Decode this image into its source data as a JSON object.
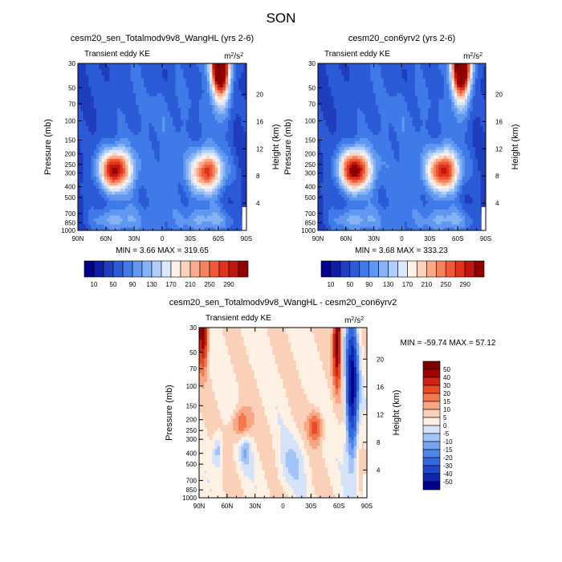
{
  "title": "SON",
  "colors": {
    "seq": [
      "#00008b",
      "#0d1ea5",
      "#1f3ebe",
      "#2b5bd6",
      "#3f7ae8",
      "#6097f0",
      "#86b3f5",
      "#afcdf8",
      "#dbe7fb",
      "#fff1e5",
      "#fdd2bd",
      "#fbab8b",
      "#f6815d",
      "#ef5834",
      "#e0321c",
      "#c11610",
      "#8f0000"
    ],
    "diff": [
      "#00008b",
      "#0f25ad",
      "#2046c9",
      "#3466dd",
      "#4f85e8",
      "#77a4f0",
      "#a4c3f6",
      "#d4e2fa",
      "#fff0e4",
      "#fbd0b8",
      "#f8a784",
      "#f3784f",
      "#e84b25",
      "#cc2411",
      "#9f0000",
      "#7a0000"
    ]
  },
  "chart_data": [
    {
      "type": "heatmap",
      "title": "cesm20_sen_Totalmodv9v8_WangHL (yrs 2-6)",
      "subtitle_left": "Transient eddy KE",
      "units": "m2/s2",
      "units_text": "m",
      "units_sup": "2",
      "units_den": "/s",
      "units_sup2": "2",
      "ylabel": "Pressure (mb)",
      "ylabel_right": "Height (km)",
      "x_ticks": [
        "90N",
        "60N",
        "30N",
        "0",
        "30S",
        "60S",
        "90S"
      ],
      "y_ticks": [
        "30",
        "50",
        "70",
        "100",
        "150",
        "200",
        "250",
        "300",
        "400",
        "500",
        "700",
        "850",
        "1000"
      ],
      "y_right_ticks": [
        "4",
        "8",
        "12",
        "16",
        "20"
      ],
      "min_max_text": "MIN =  3.66  MAX = 319.65",
      "colorbar_labels": [
        "10",
        "50",
        "90",
        "130",
        "170",
        "210",
        "250",
        "290"
      ],
      "blobs": [
        {
          "lat": 50,
          "p": 280,
          "amp": 300
        },
        {
          "lat": -48,
          "p": 290,
          "amp": 260
        },
        {
          "lat": -62,
          "p": 30,
          "amp": 315
        }
      ]
    },
    {
      "type": "heatmap",
      "title": "cesm20_con6yrv2 (yrs 2-6)",
      "subtitle_left": "Transient eddy KE",
      "units": "m2/s2",
      "units_text": "m",
      "units_sup": "2",
      "units_den": "/s",
      "units_sup2": "2",
      "ylabel": "Pressure (mb)",
      "ylabel_right": "Height (km)",
      "x_ticks": [
        "90N",
        "60N",
        "30N",
        "0",
        "30S",
        "60S",
        "90S"
      ],
      "y_ticks": [
        "30",
        "50",
        "70",
        "100",
        "150",
        "200",
        "250",
        "300",
        "400",
        "500",
        "700",
        "850",
        "1000"
      ],
      "y_right_ticks": [
        "4",
        "8",
        "12",
        "16",
        "20"
      ],
      "min_max_text": "MIN =  3.68  MAX = 333.23",
      "colorbar_labels": [
        "10",
        "50",
        "90",
        "130",
        "170",
        "210",
        "250",
        "290"
      ],
      "blobs": [
        {
          "lat": 50,
          "p": 280,
          "amp": 310
        },
        {
          "lat": -45,
          "p": 285,
          "amp": 280
        },
        {
          "lat": -65,
          "p": 30,
          "amp": 330
        }
      ]
    },
    {
      "type": "heatmap",
      "title": "cesm20_sen_Totalmodv9v8_WangHL - cesm20_con6yrv2",
      "subtitle_left": "Transient eddy KE",
      "units": "m2/s2",
      "units_text": "m",
      "units_sup": "2",
      "units_den": "/s",
      "units_sup2": "2",
      "ylabel": "Pressure (mb)",
      "ylabel_right": "Height (km)",
      "x_ticks": [
        "90N",
        "60N",
        "30N",
        "0",
        "30S",
        "60S",
        "90S"
      ],
      "y_ticks": [
        "30",
        "50",
        "70",
        "100",
        "150",
        "200",
        "250",
        "300",
        "400",
        "500",
        "700",
        "850",
        "1000"
      ],
      "y_right_ticks": [
        "4",
        "8",
        "12",
        "16",
        "20"
      ],
      "min_max_text": "MIN = -59.74  MAX =  57.12",
      "colorbar_labels": [
        "50",
        "40",
        "30",
        "20",
        "15",
        "10",
        "5",
        "0",
        "-5",
        "-10",
        "-15",
        "-20",
        "-30",
        "-40",
        "-50"
      ]
    }
  ]
}
